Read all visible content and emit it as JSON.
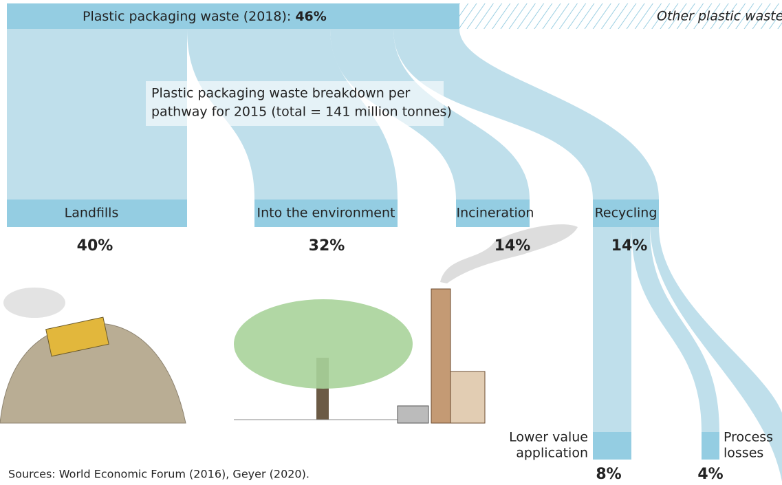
{
  "header": {
    "title": "Plastic packaging waste (2018):",
    "share": "46%",
    "other": "Other plastic waste"
  },
  "note": {
    "lines": [
      "Plastic packaging waste breakdown per",
      "pathway for 2015 (total = 141 million tonnes)"
    ]
  },
  "pathways": [
    {
      "label": "Landfills",
      "share": "40%"
    },
    {
      "label": "Into the environment",
      "share": "32%"
    },
    {
      "label": "Incineration",
      "share": "14%"
    },
    {
      "label": "Recycling",
      "share": "14%"
    }
  ],
  "recycling_outcomes": [
    {
      "label_lines": [
        "Lower value",
        "application"
      ],
      "share": "8%"
    },
    {
      "label_lines": [
        "Process",
        "losses"
      ],
      "share": "4%"
    }
  ],
  "source": "Sources: World Economic Forum (2016), Geyer (2020)."
}
